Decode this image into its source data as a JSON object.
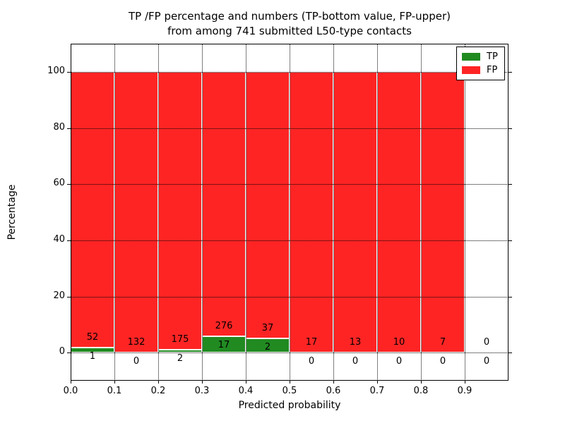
{
  "figure": {
    "title_line1": "TP /FP percentage and numbers (TP-bottom value, FP-upper)",
    "title_line2": "from among 741 submitted L50-type contacts",
    "xlabel": "Predicted probability",
    "ylabel": "Percentage"
  },
  "legend": {
    "position": "upper right",
    "items": [
      {
        "label": "TP",
        "color": "#218a21"
      },
      {
        "label": "FP",
        "color": "#ff2424"
      }
    ]
  },
  "chart_data": {
    "type": "bar",
    "stacked": true,
    "normalized_to_percent": true,
    "title": "TP /FP percentage and numbers (TP-bottom value, FP-upper) from among 741 submitted L50-type contacts",
    "xlabel": "Predicted probability",
    "ylabel": "Percentage",
    "total_contacts_in_title": 741,
    "bin_width": 0.1,
    "bin_starts": [
      0.0,
      0.1,
      0.2,
      0.3,
      0.4,
      0.5,
      0.6,
      0.7,
      0.8,
      0.9
    ],
    "x_tick_labels": [
      "0.0",
      "0.1",
      "0.2",
      "0.3",
      "0.4",
      "0.5",
      "0.6",
      "0.7",
      "0.8",
      "0.9"
    ],
    "y_tick_values": [
      0,
      20,
      40,
      60,
      80,
      100
    ],
    "y_tick_labels": [
      "0",
      "20",
      "40",
      "60",
      "80",
      "100"
    ],
    "xlim": [
      0.0,
      1.0
    ],
    "ylim": [
      -10,
      110
    ],
    "grid": "dotted",
    "legend_position": "upper right",
    "series": [
      {
        "name": "TP",
        "color": "#218a21",
        "counts": [
          1,
          0,
          2,
          17,
          2,
          0,
          0,
          0,
          0,
          0
        ],
        "percentages": [
          1.89,
          0,
          1.13,
          5.8,
          5.13,
          0,
          0,
          0,
          0,
          0
        ]
      },
      {
        "name": "FP",
        "color": "#ff2424",
        "counts": [
          52,
          132,
          175,
          276,
          37,
          17,
          13,
          10,
          7,
          0
        ],
        "percentages": [
          98.11,
          100,
          98.87,
          94.2,
          94.87,
          100,
          100,
          100,
          100,
          0
        ]
      }
    ],
    "annotation_rule": "FP count printed above TP segment top, TP count printed below TP segment top"
  }
}
